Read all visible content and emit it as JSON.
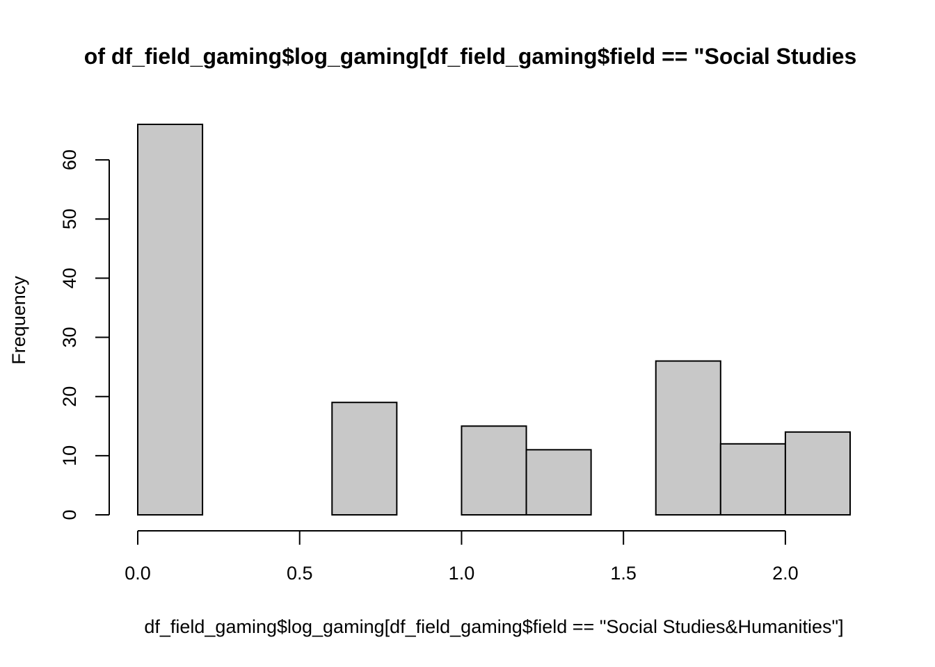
{
  "chart_data": {
    "type": "bar",
    "title": "of df_field_gaming$log_gaming[df_field_gaming$field == \"Social Studies",
    "xlabel": "df_field_gaming$log_gaming[df_field_gaming$field == \"Social Studies&Humanities\"]",
    "ylabel": "Frequency",
    "bins": [
      {
        "start": 0.0,
        "end": 0.2,
        "count": 66
      },
      {
        "start": 0.2,
        "end": 0.4,
        "count": 0
      },
      {
        "start": 0.4,
        "end": 0.6,
        "count": 0
      },
      {
        "start": 0.6,
        "end": 0.8,
        "count": 19
      },
      {
        "start": 0.8,
        "end": 1.0,
        "count": 0
      },
      {
        "start": 1.0,
        "end": 1.2,
        "count": 15
      },
      {
        "start": 1.2,
        "end": 1.4,
        "count": 11
      },
      {
        "start": 1.4,
        "end": 1.6,
        "count": 0
      },
      {
        "start": 1.6,
        "end": 1.8,
        "count": 26
      },
      {
        "start": 1.8,
        "end": 2.0,
        "count": 12
      },
      {
        "start": 2.0,
        "end": 2.2,
        "count": 14
      }
    ],
    "xticks": [
      "0.0",
      "0.5",
      "1.0",
      "1.5",
      "2.0"
    ],
    "xtick_values": [
      0.0,
      0.5,
      1.0,
      1.5,
      2.0
    ],
    "yticks": [
      "0",
      "10",
      "20",
      "30",
      "40",
      "50",
      "60"
    ],
    "ytick_values": [
      0,
      10,
      20,
      30,
      40,
      50,
      60
    ],
    "xlim": [
      0.0,
      2.2
    ],
    "ylim": [
      0,
      66
    ],
    "grid": false,
    "bar_fill": "#c8c8c8",
    "bar_stroke": "#000000"
  }
}
